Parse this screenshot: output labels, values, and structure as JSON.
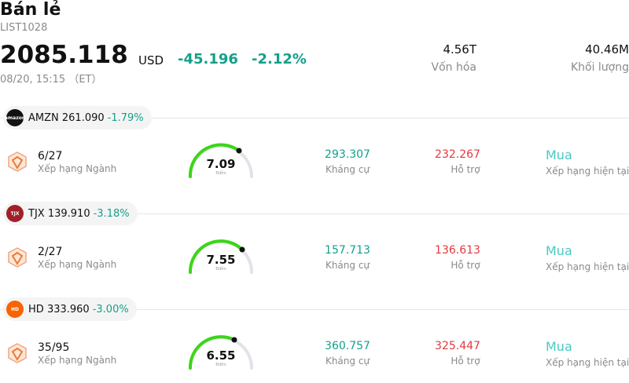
{
  "header": {
    "title": "Bán lẻ",
    "code": "LIST1028",
    "price": "2085.118",
    "currency": "USD",
    "change": "-45.196",
    "change_pct": "-2.12%",
    "time": "08/20, 15:15 （ET）"
  },
  "stats": {
    "market_cap_value": "4.56T",
    "market_cap_label": "Vốn hóa",
    "volume_value": "40.46M",
    "volume_label": "Khối lượng"
  },
  "stocks": [
    {
      "symbol": "AMZN",
      "price": "261.090",
      "change_pct": "-1.79%",
      "logo_text": "amazon",
      "rank": "6/27",
      "rank_label": "Xếp hạng Ngành",
      "score": "7.09",
      "score_label": "Điểm",
      "resistance": "293.307",
      "resistance_label": "Kháng cự",
      "support": "232.267",
      "support_label": "Hỗ trợ",
      "rating": "Mua",
      "rating_label": "Xếp hạng hiện tại"
    },
    {
      "symbol": "TJX",
      "price": "139.910",
      "change_pct": "-3.18%",
      "logo_text": "TJX",
      "rank": "2/27",
      "rank_label": "Xếp hạng Ngành",
      "score": "7.55",
      "score_label": "Điểm",
      "resistance": "157.713",
      "resistance_label": "Kháng cự",
      "support": "136.613",
      "support_label": "Hỗ trợ",
      "rating": "Mua",
      "rating_label": "Xếp hạng hiện tại"
    },
    {
      "symbol": "HD",
      "price": "333.960",
      "change_pct": "-3.00%",
      "logo_text": "HD",
      "rank": "35/95",
      "rank_label": "Xếp hạng Ngành",
      "score": "6.55",
      "score_label": "Điểm",
      "resistance": "360.757",
      "resistance_label": "Kháng cự",
      "support": "325.447",
      "support_label": "Hỗ trợ",
      "rating": "Mua",
      "rating_label": "Xếp hạng hiện tại"
    }
  ],
  "colors": {
    "accent_green": "#14a08a",
    "support_red": "#e0393e",
    "rating_teal": "#4ac9c2",
    "gauge_green": "#3ad616",
    "amzn_logo_bg": "#111111",
    "tjx_logo_bg": "#a0202a",
    "hd_logo_bg": "#f96302"
  }
}
